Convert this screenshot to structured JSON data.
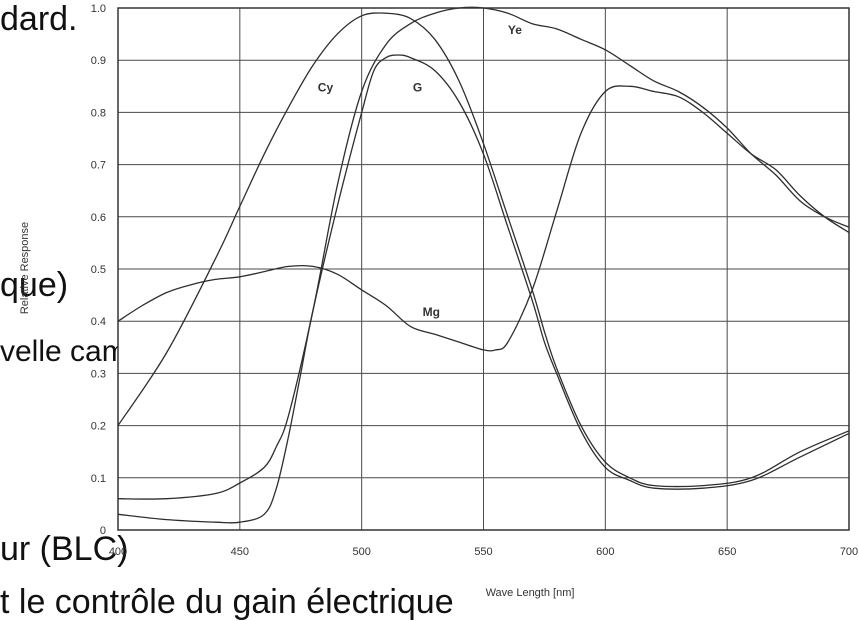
{
  "slide": {
    "lines": [
      "dard.",
      "que)",
      "velle caméra",
      "ur (BLC)",
      "t le contrôle du gain électrique"
    ],
    "text_color": "#111111"
  },
  "chart_data": {
    "type": "line",
    "xlabel": "Wave Length [nm]",
    "ylabel": "Relative Response",
    "xlim": [
      400,
      700
    ],
    "ylim": [
      0,
      1.0
    ],
    "x_ticks": [
      400,
      450,
      500,
      550,
      600,
      650,
      700
    ],
    "x_tick_labels": [
      "400",
      "450",
      "500",
      "550",
      "600",
      "650",
      "700"
    ],
    "y_ticks": [
      0,
      0.1,
      0.2,
      0.3,
      0.4,
      0.5,
      0.6,
      0.7,
      0.8,
      0.9,
      1.0
    ],
    "y_tick_labels": [
      "0",
      "0.1",
      "0.2",
      "0.3",
      "0.4",
      "0.5",
      "0.6",
      "0.7",
      "0.8",
      "0.9",
      "1.0"
    ],
    "grid": true,
    "legend": "none (curves labeled directly)",
    "line_color": "#2e2e2e",
    "series": [
      {
        "name": "Cy",
        "label_at": [
          482,
          0.84
        ],
        "x": [
          400,
          420,
          440,
          450,
          460,
          470,
          480,
          490,
          500,
          510,
          520,
          530,
          540,
          550,
          560,
          570,
          575,
          580,
          590,
          600,
          610,
          620,
          640,
          660,
          680,
          700
        ],
        "y": [
          0.2,
          0.34,
          0.52,
          0.62,
          0.72,
          0.81,
          0.89,
          0.95,
          0.985,
          0.99,
          0.98,
          0.94,
          0.86,
          0.74,
          0.6,
          0.46,
          0.38,
          0.31,
          0.2,
          0.13,
          0.1,
          0.085,
          0.085,
          0.1,
          0.15,
          0.19
        ]
      },
      {
        "name": "Ye",
        "label_at": [
          560,
          0.95
        ],
        "x": [
          400,
          420,
          440,
          450,
          460,
          465,
          470,
          480,
          490,
          500,
          510,
          520,
          530,
          540,
          550,
          560,
          570,
          580,
          590,
          600,
          610,
          620,
          630,
          640,
          650,
          660,
          670,
          680,
          690,
          700
        ],
        "y": [
          0.06,
          0.06,
          0.07,
          0.09,
          0.12,
          0.16,
          0.22,
          0.42,
          0.66,
          0.84,
          0.93,
          0.97,
          0.99,
          1.0,
          1.0,
          0.99,
          0.97,
          0.96,
          0.94,
          0.92,
          0.89,
          0.86,
          0.84,
          0.81,
          0.77,
          0.72,
          0.68,
          0.63,
          0.6,
          0.58
        ]
      },
      {
        "name": "G",
        "label_at": [
          521,
          0.84
        ],
        "x": [
          400,
          420,
          440,
          450,
          460,
          465,
          470,
          475,
          480,
          490,
          500,
          505,
          510,
          515,
          520,
          530,
          540,
          550,
          560,
          570,
          575,
          580,
          590,
          600,
          610,
          620,
          640,
          660,
          680,
          700
        ],
        "y": [
          0.03,
          0.02,
          0.015,
          0.015,
          0.03,
          0.08,
          0.18,
          0.3,
          0.42,
          0.62,
          0.8,
          0.88,
          0.905,
          0.91,
          0.905,
          0.88,
          0.82,
          0.72,
          0.58,
          0.44,
          0.36,
          0.3,
          0.19,
          0.12,
          0.095,
          0.08,
          0.08,
          0.095,
          0.14,
          0.185
        ]
      },
      {
        "name": "Mg",
        "label_at": [
          525,
          0.41
        ],
        "x": [
          400,
          410,
          420,
          430,
          440,
          450,
          460,
          470,
          480,
          490,
          500,
          510,
          520,
          530,
          540,
          550,
          555,
          560,
          570,
          580,
          590,
          600,
          610,
          620,
          630,
          640,
          650,
          660,
          670,
          680,
          690,
          700
        ],
        "y": [
          0.4,
          0.43,
          0.455,
          0.47,
          0.48,
          0.485,
          0.495,
          0.505,
          0.505,
          0.49,
          0.46,
          0.43,
          0.39,
          0.375,
          0.36,
          0.345,
          0.345,
          0.36,
          0.46,
          0.61,
          0.76,
          0.84,
          0.85,
          0.84,
          0.83,
          0.8,
          0.76,
          0.72,
          0.69,
          0.64,
          0.6,
          0.57
        ]
      }
    ]
  }
}
